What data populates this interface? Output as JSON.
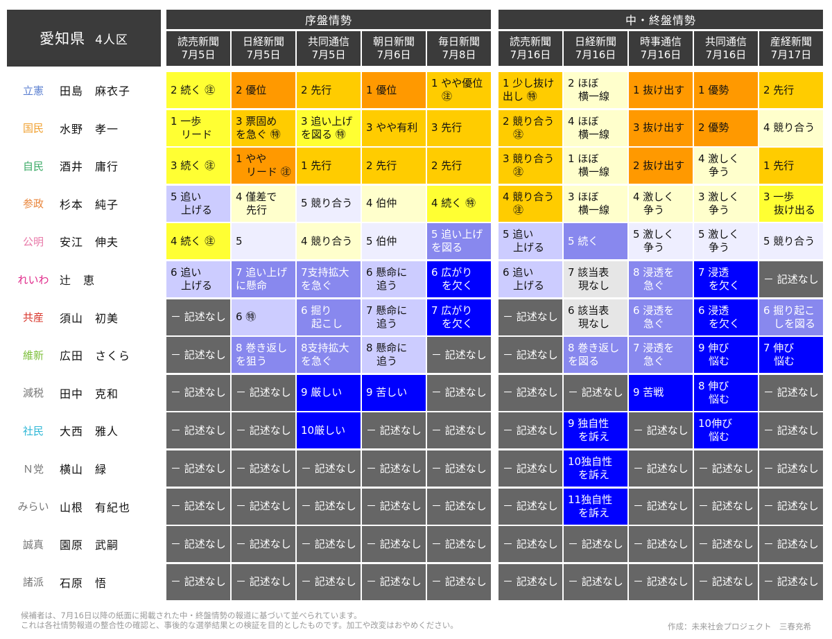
{
  "title": {
    "prefecture": "愛知県",
    "seats": "4人区"
  },
  "groups": [
    {
      "label": "序盤情勢"
    },
    {
      "label": "中・終盤情勢"
    }
  ],
  "columns": [
    {
      "paper": "読売新聞",
      "date": "7月5日"
    },
    {
      "paper": "日経新聞",
      "date": "7月5日"
    },
    {
      "paper": "共同通信",
      "date": "7月5日"
    },
    {
      "paper": "朝日新聞",
      "date": "7月6日"
    },
    {
      "paper": "毎日新聞",
      "date": "7月8日"
    },
    {
      "paper": "読売新聞",
      "date": "7月16日"
    },
    {
      "paper": "日経新聞",
      "date": "7月16日"
    },
    {
      "paper": "時事通信",
      "date": "7月16日"
    },
    {
      "paper": "共同通信",
      "date": "7月16日"
    },
    {
      "paper": "産経新聞",
      "date": "7月17日"
    }
  ],
  "colors": {
    "s1": "#ff9900",
    "s2": "#ffcc00",
    "s3": "#ffff33",
    "s4": "#ffffcc",
    "s5": "#eeeeff",
    "s6": "#ccccff",
    "s7": "#8888ee",
    "s8": "#0000ff",
    "s9": "#666666",
    "s10": "#e6e6e6"
  },
  "rows": [
    {
      "party": "立憲",
      "party_color": "#5b7fd0",
      "candidate": "田島　麻衣子",
      "cells": [
        {
          "text": "2 続く ㊟",
          "c": "s3"
        },
        {
          "text": "2 優位",
          "c": "s1"
        },
        {
          "text": "2 先行",
          "c": "s2"
        },
        {
          "text": "1 優位",
          "c": "s1"
        },
        {
          "text": "1 やや優位\n　㊟",
          "c": "s2"
        },
        {
          "text": "1 少し抜け\n出し ㊕",
          "c": "s2"
        },
        {
          "text": "2 ほぼ\n　横一線",
          "c": "s4"
        },
        {
          "text": "1 抜け出す",
          "c": "s1"
        },
        {
          "text": "1 優勢",
          "c": "s1"
        },
        {
          "text": "2 先行",
          "c": "s2"
        }
      ]
    },
    {
      "party": "国民",
      "party_color": "#f0a030",
      "candidate": "水野　孝一",
      "cells": [
        {
          "text": "1 一歩\n　リード",
          "c": "s3"
        },
        {
          "text": "3 票固め\nを急ぐ ㊕",
          "c": "s2"
        },
        {
          "text": "3 追い上げ\nを図る ㊕",
          "c": "s3"
        },
        {
          "text": "3 やや有利",
          "c": "s2"
        },
        {
          "text": "3 先行",
          "c": "s2"
        },
        {
          "text": "2 競り合う\n　㊟",
          "c": "s2"
        },
        {
          "text": "4 ほぼ\n　横一線",
          "c": "s4"
        },
        {
          "text": "3 抜け出す",
          "c": "s1"
        },
        {
          "text": "2 優勢",
          "c": "s1"
        },
        {
          "text": "4 競り合う",
          "c": "s4"
        }
      ]
    },
    {
      "party": "自民",
      "party_color": "#3cab67",
      "candidate": "酒井　庸行",
      "cells": [
        {
          "text": "3 続く ㊟",
          "c": "s3"
        },
        {
          "text": "1 やや\n　リード ㊟",
          "c": "s1"
        },
        {
          "text": "1 先行",
          "c": "s2"
        },
        {
          "text": "2 先行",
          "c": "s2"
        },
        {
          "text": "2 先行",
          "c": "s2"
        },
        {
          "text": "3 競り合う\n　㊟",
          "c": "s2"
        },
        {
          "text": "1 ほぼ\n　横一線",
          "c": "s4"
        },
        {
          "text": "2 抜け出す",
          "c": "s1"
        },
        {
          "text": "4 激しく\n　争う",
          "c": "s4"
        },
        {
          "text": "1 先行",
          "c": "s2"
        }
      ]
    },
    {
      "party": "参政",
      "party_color": "#e8843a",
      "candidate": "杉本　純子",
      "cells": [
        {
          "text": "5 追い\n　上げる",
          "c": "s6"
        },
        {
          "text": "4 僅差で\n　先行",
          "c": "s4"
        },
        {
          "text": "5 競り合う",
          "c": "s5"
        },
        {
          "text": "4 伯仲",
          "c": "s4"
        },
        {
          "text": "4 続く ㊕",
          "c": "s3"
        },
        {
          "text": "4 競り合う\n　㊟",
          "c": "s2"
        },
        {
          "text": "3 ほぼ\n　横一線",
          "c": "s4"
        },
        {
          "text": "4 激しく\n　争う",
          "c": "s4"
        },
        {
          "text": "3 激しく\n　争う",
          "c": "s4"
        },
        {
          "text": "3 一歩\n　抜け出る",
          "c": "s3"
        }
      ]
    },
    {
      "party": "公明",
      "party_color": "#e879a8",
      "candidate": "安江　伸夫",
      "cells": [
        {
          "text": "4 続く ㊟",
          "c": "s3"
        },
        {
          "text": "5",
          "c": "s5"
        },
        {
          "text": "4 競り合う",
          "c": "s4"
        },
        {
          "text": "5 伯仲",
          "c": "s5"
        },
        {
          "text": "5 追い上げ\nを図る",
          "c": "s7",
          "fg": "#ffffff"
        },
        {
          "text": "5 追い\n　上げる",
          "c": "s6"
        },
        {
          "text": "5 続く",
          "c": "s7",
          "fg": "#ffffff"
        },
        {
          "text": "5 激しく\n　争う",
          "c": "s5"
        },
        {
          "text": "5 激しく\n　争う",
          "c": "s5"
        },
        {
          "text": "5 競り合う",
          "c": "s5"
        }
      ]
    },
    {
      "party": "れいわ",
      "party_color": "#e0298a",
      "candidate": "辻　恵",
      "cells": [
        {
          "text": "6 追い\n　上げる",
          "c": "s6"
        },
        {
          "text": "7 追い上げ\nに懸命",
          "c": "s7",
          "fg": "#ffffff"
        },
        {
          "text": "7支持拡大\nを急ぐ",
          "c": "s7",
          "fg": "#ffffff"
        },
        {
          "text": "6 懸命に\n　追う",
          "c": "s6"
        },
        {
          "text": "6 広がり\n　を欠く",
          "c": "s8",
          "fg": "#ffffff"
        },
        {
          "text": "6 追い\n　上げる",
          "c": "s6"
        },
        {
          "text": "7 該当表\n　現なし",
          "c": "s10"
        },
        {
          "text": "8 浸透を\n　急ぐ",
          "c": "s7",
          "fg": "#ffffff"
        },
        {
          "text": "7 浸透\n　を欠く",
          "c": "s8",
          "fg": "#ffffff"
        },
        {
          "text": "－ 記述なし",
          "c": "s9",
          "fg": "#ffffff"
        }
      ]
    },
    {
      "party": "共産",
      "party_color": "#d8342a",
      "candidate": "須山　初美",
      "cells": [
        {
          "text": "－ 記述なし",
          "c": "s9",
          "fg": "#ffffff"
        },
        {
          "text": "6 ㊕",
          "c": "s6"
        },
        {
          "text": "6 掘り\n　起こし",
          "c": "s7",
          "fg": "#ffffff"
        },
        {
          "text": "7 懸命に\n　追う",
          "c": "s6"
        },
        {
          "text": "7 広がり\n　を欠く",
          "c": "s8",
          "fg": "#ffffff"
        },
        {
          "text": "－ 記述なし",
          "c": "s9",
          "fg": "#ffffff"
        },
        {
          "text": "6 該当表\n　現なし",
          "c": "s10"
        },
        {
          "text": "6 浸透を\n　急ぐ",
          "c": "s7",
          "fg": "#ffffff"
        },
        {
          "text": "6 浸透\n　を欠く",
          "c": "s8",
          "fg": "#ffffff"
        },
        {
          "text": "6 掘り起こ\n　しを図る",
          "c": "s7",
          "fg": "#ffffff"
        }
      ]
    },
    {
      "party": "維新",
      "party_color": "#7cbf3a",
      "candidate": "広田　さくら",
      "cells": [
        {
          "text": "－ 記述なし",
          "c": "s9",
          "fg": "#ffffff"
        },
        {
          "text": "8 巻き返し\nを狙う",
          "c": "s7",
          "fg": "#ffffff"
        },
        {
          "text": "8支持拡大\nを急ぐ",
          "c": "s7",
          "fg": "#ffffff"
        },
        {
          "text": "8 懸命に\n　追う",
          "c": "s6"
        },
        {
          "text": "－ 記述なし",
          "c": "s9",
          "fg": "#ffffff"
        },
        {
          "text": "－ 記述なし",
          "c": "s9",
          "fg": "#ffffff"
        },
        {
          "text": "8 巻き返し\nを図る",
          "c": "s7",
          "fg": "#ffffff"
        },
        {
          "text": "7 浸透を\n　急ぐ",
          "c": "s7",
          "fg": "#ffffff"
        },
        {
          "text": "9 伸び\n　悩む",
          "c": "s8",
          "fg": "#ffffff"
        },
        {
          "text": "7 伸び\n　悩む",
          "c": "s8",
          "fg": "#ffffff"
        }
      ]
    },
    {
      "party": "減税",
      "party_color": "#777777",
      "candidate": "田中　克和",
      "cells": [
        {
          "text": "－ 記述なし",
          "c": "s9",
          "fg": "#ffffff"
        },
        {
          "text": "－ 記述なし",
          "c": "s9",
          "fg": "#ffffff"
        },
        {
          "text": "9 厳しい",
          "c": "s8",
          "fg": "#ffffff"
        },
        {
          "text": "9 苦しい",
          "c": "s8",
          "fg": "#ffffff"
        },
        {
          "text": "－ 記述なし",
          "c": "s9",
          "fg": "#ffffff"
        },
        {
          "text": "－ 記述なし",
          "c": "s9",
          "fg": "#ffffff"
        },
        {
          "text": "－ 記述なし",
          "c": "s9",
          "fg": "#ffffff"
        },
        {
          "text": "9 苦戦",
          "c": "s8",
          "fg": "#ffffff"
        },
        {
          "text": "8 伸び\n　悩む",
          "c": "s8",
          "fg": "#ffffff"
        },
        {
          "text": "－ 記述なし",
          "c": "s9",
          "fg": "#ffffff"
        }
      ]
    },
    {
      "party": "社民",
      "party_color": "#2fb7d6",
      "candidate": "大西　雅人",
      "cells": [
        {
          "text": "－ 記述なし",
          "c": "s9",
          "fg": "#ffffff"
        },
        {
          "text": "－ 記述なし",
          "c": "s9",
          "fg": "#ffffff"
        },
        {
          "text": "10厳しい",
          "c": "s8",
          "fg": "#ffffff"
        },
        {
          "text": "－ 記述なし",
          "c": "s9",
          "fg": "#ffffff"
        },
        {
          "text": "－ 記述なし",
          "c": "s9",
          "fg": "#ffffff"
        },
        {
          "text": "－ 記述なし",
          "c": "s9",
          "fg": "#ffffff"
        },
        {
          "text": "9 独自性\n　を訴え",
          "c": "s8",
          "fg": "#ffffff"
        },
        {
          "text": "－ 記述なし",
          "c": "s9",
          "fg": "#ffffff"
        },
        {
          "text": "10伸び\n　悩む",
          "c": "s8",
          "fg": "#ffffff"
        },
        {
          "text": "－ 記述なし",
          "c": "s9",
          "fg": "#ffffff"
        }
      ]
    },
    {
      "party": "Ｎ党",
      "party_color": "#777777",
      "candidate": "横山　緑",
      "cells": [
        {
          "text": "－ 記述なし",
          "c": "s9",
          "fg": "#ffffff"
        },
        {
          "text": "－ 記述なし",
          "c": "s9",
          "fg": "#ffffff"
        },
        {
          "text": "－ 記述なし",
          "c": "s9",
          "fg": "#ffffff"
        },
        {
          "text": "－ 記述なし",
          "c": "s9",
          "fg": "#ffffff"
        },
        {
          "text": "－ 記述なし",
          "c": "s9",
          "fg": "#ffffff"
        },
        {
          "text": "－ 記述なし",
          "c": "s9",
          "fg": "#ffffff"
        },
        {
          "text": "10独自性\n　を訴え",
          "c": "s8",
          "fg": "#ffffff"
        },
        {
          "text": "－ 記述なし",
          "c": "s9",
          "fg": "#ffffff"
        },
        {
          "text": "－ 記述なし",
          "c": "s9",
          "fg": "#ffffff"
        },
        {
          "text": "－ 記述なし",
          "c": "s9",
          "fg": "#ffffff"
        }
      ]
    },
    {
      "party": "みらい",
      "party_color": "#777777",
      "candidate": "山根　有紀也",
      "cells": [
        {
          "text": "－ 記述なし",
          "c": "s9",
          "fg": "#ffffff"
        },
        {
          "text": "－ 記述なし",
          "c": "s9",
          "fg": "#ffffff"
        },
        {
          "text": "－ 記述なし",
          "c": "s9",
          "fg": "#ffffff"
        },
        {
          "text": "－ 記述なし",
          "c": "s9",
          "fg": "#ffffff"
        },
        {
          "text": "－ 記述なし",
          "c": "s9",
          "fg": "#ffffff"
        },
        {
          "text": "－ 記述なし",
          "c": "s9",
          "fg": "#ffffff"
        },
        {
          "text": "11独自性\n　を訴え",
          "c": "s8",
          "fg": "#ffffff"
        },
        {
          "text": "－ 記述なし",
          "c": "s9",
          "fg": "#ffffff"
        },
        {
          "text": "－ 記述なし",
          "c": "s9",
          "fg": "#ffffff"
        },
        {
          "text": "－ 記述なし",
          "c": "s9",
          "fg": "#ffffff"
        }
      ]
    },
    {
      "party": "誠真",
      "party_color": "#777777",
      "candidate": "園原　武嗣",
      "cells": [
        {
          "text": "－ 記述なし",
          "c": "s9",
          "fg": "#ffffff"
        },
        {
          "text": "－ 記述なし",
          "c": "s9",
          "fg": "#ffffff"
        },
        {
          "text": "－ 記述なし",
          "c": "s9",
          "fg": "#ffffff"
        },
        {
          "text": "－ 記述なし",
          "c": "s9",
          "fg": "#ffffff"
        },
        {
          "text": "－ 記述なし",
          "c": "s9",
          "fg": "#ffffff"
        },
        {
          "text": "－ 記述なし",
          "c": "s9",
          "fg": "#ffffff"
        },
        {
          "text": "－ 記述なし",
          "c": "s9",
          "fg": "#ffffff"
        },
        {
          "text": "－ 記述なし",
          "c": "s9",
          "fg": "#ffffff"
        },
        {
          "text": "－ 記述なし",
          "c": "s9",
          "fg": "#ffffff"
        },
        {
          "text": "－ 記述なし",
          "c": "s9",
          "fg": "#ffffff"
        }
      ]
    },
    {
      "party": "諸派",
      "party_color": "#777777",
      "candidate": "石原　悟",
      "cells": [
        {
          "text": "－ 記述なし",
          "c": "s9",
          "fg": "#ffffff"
        },
        {
          "text": "－ 記述なし",
          "c": "s9",
          "fg": "#ffffff"
        },
        {
          "text": "－ 記述なし",
          "c": "s9",
          "fg": "#ffffff"
        },
        {
          "text": "－ 記述なし",
          "c": "s9",
          "fg": "#ffffff"
        },
        {
          "text": "－ 記述なし",
          "c": "s9",
          "fg": "#ffffff"
        },
        {
          "text": "－ 記述なし",
          "c": "s9",
          "fg": "#ffffff"
        },
        {
          "text": "－ 記述なし",
          "c": "s9",
          "fg": "#ffffff"
        },
        {
          "text": "－ 記述なし",
          "c": "s9",
          "fg": "#ffffff"
        },
        {
          "text": "－ 記述なし",
          "c": "s9",
          "fg": "#ffffff"
        },
        {
          "text": "－ 記述なし",
          "c": "s9",
          "fg": "#ffffff"
        }
      ]
    }
  ],
  "footer": {
    "line1": "候補者は、7月16日以降の紙面に掲載された中・終盤情勢の報道に基づいて並べられています。",
    "line2": "これは各社情勢報道の整合性の確認と、事後的な選挙結果との検証を目的としたものです。加工や改変はおやめください。",
    "credit": "作成：未来社会プロジェクト　三春充希"
  }
}
